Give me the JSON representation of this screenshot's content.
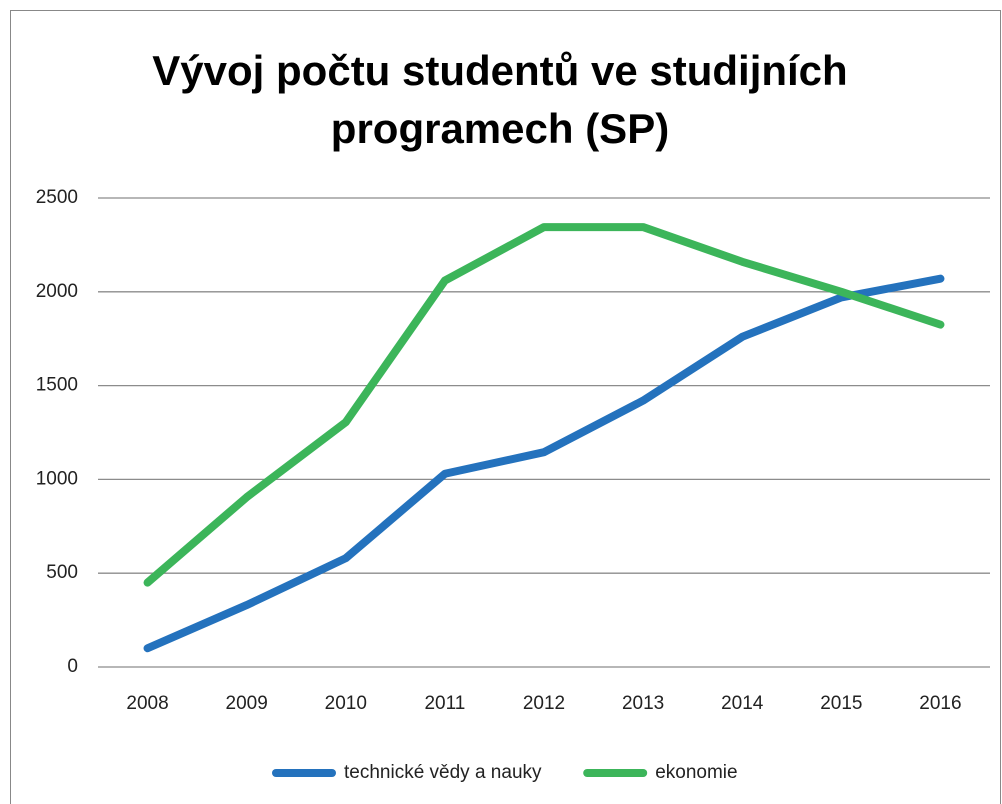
{
  "chart_data": {
    "type": "line",
    "title": "Vývoj počtu studentů ve studijních programech (SP)",
    "categories": [
      "2008",
      "2009",
      "2010",
      "2011",
      "2012",
      "2013",
      "2014",
      "2015",
      "2016"
    ],
    "series": [
      {
        "name": "technické vědy a nauky",
        "color": "#2472bd",
        "values": [
          100,
          330,
          580,
          1030,
          1145,
          1420,
          1760,
          1970,
          2070
        ]
      },
      {
        "name": "ekonomie",
        "color": "#3cb55a",
        "values": [
          450,
          905,
          1305,
          2060,
          2345,
          2345,
          2160,
          2000,
          1825
        ]
      }
    ],
    "ylim": [
      0,
      2500
    ],
    "yticks": [
      0,
      500,
      1000,
      1500,
      2000,
      2500
    ],
    "grid": true,
    "legend": "bottom"
  }
}
